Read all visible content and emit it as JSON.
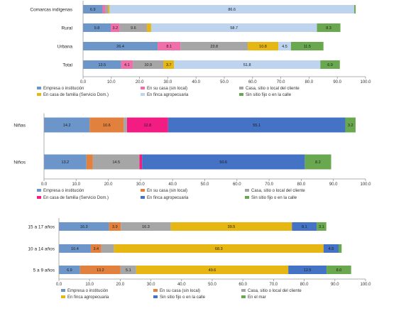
{
  "colors": {
    "Empresa o institución": "#6C96C9",
    "En su casa (sin local)": "#E2813D",
    "Casa, sitio o local del cliente": "#A6A6A6",
    "En casa de familia (Servicio Dom.)": "#E6B612",
    "En finca agropecuaria": "#BDD3EE",
    "Sin sitio fijo o en la calle": "#6AA84F",
    "Niñas/Niños: En casa de familia (Servicio Dom.)": "#F21C82",
    "Chart1: En casa de familia (Servicio Dom.)": "#F06EAA",
    "Chart2: En finca agropecuaria": "#4472C4",
    "Chart3: En finca agropecuaria": "#E6B612",
    "Chart3: Sin sitio fijo o en la calle": "#4472C4",
    "Chart3: En el mar": "#6AA84F"
  },
  "chart_data": [
    {
      "type": "bar",
      "orientation": "horizontal",
      "stacked": true,
      "categories": [
        "Comarcas indígenas",
        "Rural",
        "Urbana",
        "Total"
      ],
      "xlim": [
        0,
        100
      ],
      "xticks": [
        "0.0",
        "10.0",
        "20.0",
        "30.0",
        "40.0",
        "50.0",
        "60.0",
        "70.0",
        "80.0",
        "90.0",
        "100.0"
      ],
      "series": [
        {
          "name": "Empresa o institución",
          "colorKey": "Empresa o institución",
          "values": [
            6.9,
            9.8,
            26.4,
            13.5
          ],
          "labels": [
            "6.9",
            "9.8",
            "26.4",
            "13.5"
          ]
        },
        {
          "name": "En su casa (sin local)",
          "colorKey": "Chart1: En casa de familia (Servicio Dom.)",
          "values": [
            1.0,
            3.2,
            8.1,
            4.1
          ],
          "labels": [
            "",
            "3.2",
            "8.1",
            "4.1"
          ]
        },
        {
          "name": "Casa, sitio o local del cliente",
          "colorKey": "Casa, sitio o local del cliente",
          "values": [
            1.0,
            9.6,
            23.8,
            10.9
          ],
          "labels": [
            "",
            "9.6",
            "23.8",
            "10.9"
          ]
        },
        {
          "name": "En casa de familia (Servicio Dom.)",
          "colorKey": "En casa de familia (Servicio Dom.)",
          "values": [
            0.5,
            1.5,
            10.8,
            3.7
          ],
          "labels": [
            "",
            "",
            "10.8",
            "3.7"
          ]
        },
        {
          "name": "En finca agropecuaria",
          "colorKey": "En finca agropecuaria",
          "values": [
            86.6,
            58.7,
            4.5,
            51.8
          ],
          "labels": [
            "86.6",
            "58.7",
            "4.5",
            "51.8"
          ]
        },
        {
          "name": "Sin sitio fijo o en la calle",
          "colorKey": "Sin sitio fijo o en la calle",
          "values": [
            0.5,
            8.3,
            11.5,
            6.9
          ],
          "labels": [
            "",
            "8.3",
            "11.5",
            "6.9"
          ]
        }
      ],
      "legend": [
        "Empresa o institución",
        "En su casa (sin local)",
        "Casa, sitio o local del cliente",
        "En casa de familia (Servicio Dom.)",
        "En finca agropecuaria",
        "Sin sitio fijo o en la calle"
      ],
      "legendColorKeys": [
        "Empresa o institución",
        "Chart1: En casa de familia (Servicio Dom.)",
        "Casa, sitio o local del cliente",
        "En casa de familia (Servicio Dom.)",
        "En finca agropecuaria",
        "Sin sitio fijo o en la calle"
      ],
      "legend_position": "bottom"
    },
    {
      "type": "bar",
      "orientation": "horizontal",
      "stacked": true,
      "categories": [
        "Niñas",
        "Niños"
      ],
      "xlim": [
        0,
        100
      ],
      "xticks": [
        "0.0",
        "10.0",
        "20.0",
        "30.0",
        "40.0",
        "50.0",
        "60.0",
        "70.0",
        "80.0",
        "90.0",
        "100.0"
      ],
      "series": [
        {
          "name": "Empresa o institución",
          "colorKey": "Empresa o institución",
          "values": [
            14.2,
            13.2
          ],
          "labels": [
            "14.2",
            "13.2"
          ]
        },
        {
          "name": "En su casa (sin local)",
          "colorKey": "En su casa (sin local)",
          "values": [
            10.6,
            2.0
          ],
          "labels": [
            "10.6",
            ""
          ]
        },
        {
          "name": "Casa, sitio o local del cliente",
          "colorKey": "Casa, sitio o local del cliente",
          "values": [
            1.0,
            14.5
          ],
          "labels": [
            "",
            "14.5"
          ]
        },
        {
          "name": "En casa de familia (Servicio Dom.)",
          "colorKey": "Niñas/Niños: En casa de familia (Servicio Dom.)",
          "values": [
            12.8,
            0.8
          ],
          "labels": [
            "12.8",
            ""
          ]
        },
        {
          "name": "En finca agropecuaria",
          "colorKey": "Chart2: En finca agropecuaria",
          "values": [
            55.1,
            50.6
          ],
          "labels": [
            "55.1",
            "50.6"
          ]
        },
        {
          "name": "Sin sitio fijo o en la calle",
          "colorKey": "Sin sitio fijo o en la calle",
          "values": [
            3.2,
            8.2
          ],
          "labels": [
            "3.2",
            "8.2"
          ]
        }
      ],
      "legend": [
        "Empresa o institución",
        "En su casa (sin local)",
        "Casa, sitio o local del cliente",
        "En casa de familia (Servicio Dom.)",
        "En finca agropecuaria",
        "Sin sitio fijo o en la calle"
      ],
      "legendColorKeys": [
        "Empresa o institución",
        "En su casa (sin local)",
        "Casa, sitio o local del cliente",
        "Niñas/Niños: En casa de familia (Servicio Dom.)",
        "Chart2: En finca agropecuaria",
        "Sin sitio fijo o en la calle"
      ],
      "legend_position": "bottom"
    },
    {
      "type": "bar",
      "orientation": "horizontal",
      "stacked": true,
      "categories": [
        "15 a 17 años",
        "10 a 14 años",
        "5 a 9 años"
      ],
      "xlim": [
        0,
        100
      ],
      "xticks": [
        "0.0",
        "10.0",
        "20.0",
        "30.0",
        "40.0",
        "50.0",
        "60.0",
        "70.0",
        "80.0",
        "90.0",
        "100.0"
      ],
      "series": [
        {
          "name": "Empresa o institución",
          "colorKey": "Empresa o institución",
          "values": [
            16.3,
            10.4,
            6.9
          ],
          "labels": [
            "16.3",
            "10.4",
            "6.9"
          ]
        },
        {
          "name": "En su casa (sin local)",
          "colorKey": "En su casa (sin local)",
          "values": [
            3.9,
            3.4,
            13.2
          ],
          "labels": [
            "3.9",
            "3.4",
            "13.2"
          ]
        },
        {
          "name": "Casa, sitio o local del cliente",
          "colorKey": "Casa, sitio o local del cliente",
          "values": [
            16.3,
            4.2,
            5.1
          ],
          "labels": [
            "16.3",
            "",
            "5.1"
          ]
        },
        {
          "name": "En finca agropecuaria",
          "colorKey": "Chart3: En finca agropecuaria",
          "values": [
            39.5,
            68.3,
            49.6
          ],
          "labels": [
            "39.5",
            "68.3",
            "49.6"
          ]
        },
        {
          "name": "Sin sitio fijo o en la calle",
          "colorKey": "Chart3: Sin sitio fijo o en la calle",
          "values": [
            8.1,
            4.9,
            12.5
          ],
          "labels": [
            "8.1",
            "4.9",
            "12.5"
          ]
        },
        {
          "name": "En el mar",
          "colorKey": "Chart3: En el mar",
          "values": [
            3.1,
            1.0,
            8.0
          ],
          "labels": [
            "3.1",
            "",
            "8.0"
          ]
        }
      ],
      "legend": [
        "Empresa o institución",
        "En su casa (sin local)",
        "Casa, sitio o local del cliente",
        "En finca agropecuaria",
        "Sin sitio fijo o en la calle",
        "En el mar"
      ],
      "legendColorKeys": [
        "Empresa o institución",
        "En su casa (sin local)",
        "Casa, sitio o local del cliente",
        "Chart3: En finca agropecuaria",
        "Chart3: Sin sitio fijo o en la calle",
        "Chart3: En el mar"
      ],
      "legend_position": "bottom"
    }
  ]
}
